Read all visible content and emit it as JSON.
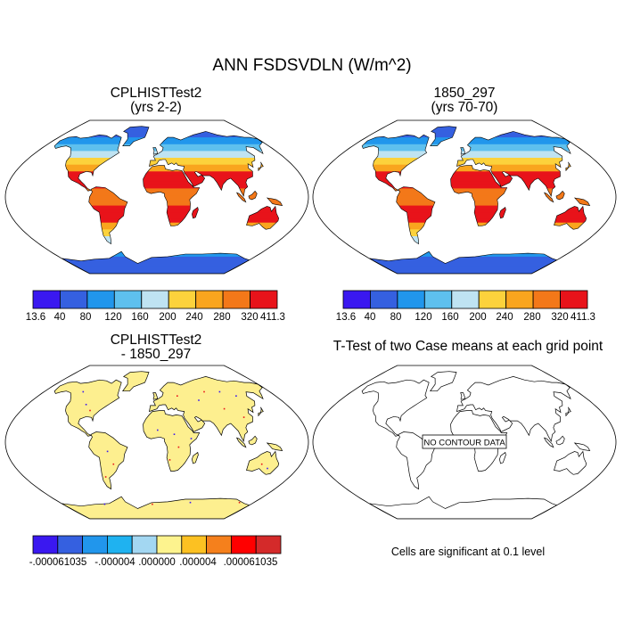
{
  "figure": {
    "main_title": "ANN FSDSVDLN (W/m^2)",
    "note": "Cells are significant at 0.1 level"
  },
  "panels": [
    {
      "title": "CPLHISTTest2",
      "subtitle": "(yrs 2-2)"
    },
    {
      "title": "1850_297",
      "subtitle": "(yrs 70-70)"
    },
    {
      "title": "CPLHISTTest2",
      "subtitle": "- 1850_297"
    },
    {
      "title": "T-Test of two Case means at each grid point",
      "subtitle": "",
      "overlay": "NO CONTOUR DATA"
    }
  ],
  "colors": {
    "field": [
      "#3a18f0",
      "#3560e0",
      "#2196ec",
      "#5ec0ee",
      "#bfe3f2",
      "#fcd23c",
      "#f9a51e",
      "#f37819",
      "#e8131a",
      "#c92a2a"
    ],
    "diff": [
      "#3a18f0",
      "#3560e0",
      "#2196ec",
      "#1fb2f0",
      "#a3d7f2",
      "#fdf38e",
      "#fcc122",
      "#f5801c",
      "#ff0000",
      "#d42a2a"
    ],
    "ocean": "#ffffff",
    "coast": "#000000",
    "diff_land": "#fdef8f"
  },
  "chart_data": [
    {
      "type": "heatmap",
      "title": "CPLHISTTest2",
      "subtitle": "(yrs 2-2)",
      "projection": "Robinson",
      "colorbar": {
        "labels": [
          "13.6",
          "40",
          "80",
          "120",
          "160",
          "200",
          "240",
          "280",
          "320",
          "411.3"
        ]
      }
    },
    {
      "type": "heatmap",
      "title": "1850_297",
      "subtitle": "(yrs 70-70)",
      "projection": "Robinson",
      "colorbar": {
        "labels": [
          "13.6",
          "40",
          "80",
          "120",
          "160",
          "200",
          "240",
          "280",
          "320",
          "411.3"
        ]
      }
    },
    {
      "type": "heatmap",
      "title": "CPLHISTTest2",
      "subtitle": "- 1850_297",
      "projection": "Robinson",
      "colorbar": {
        "labels": [
          "-.000061035",
          "-.000004",
          ".000000",
          ".000004",
          ".000061035"
        ]
      }
    },
    {
      "type": "heatmap",
      "title": "T-Test of two Case means at each grid point",
      "projection": "Robinson",
      "annotations": [
        "NO CONTOUR DATA"
      ]
    }
  ]
}
